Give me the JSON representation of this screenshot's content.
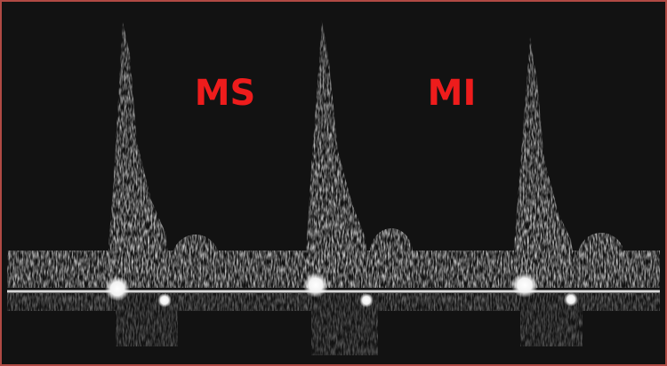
{
  "labels": [
    "MS",
    "MI"
  ]
}
